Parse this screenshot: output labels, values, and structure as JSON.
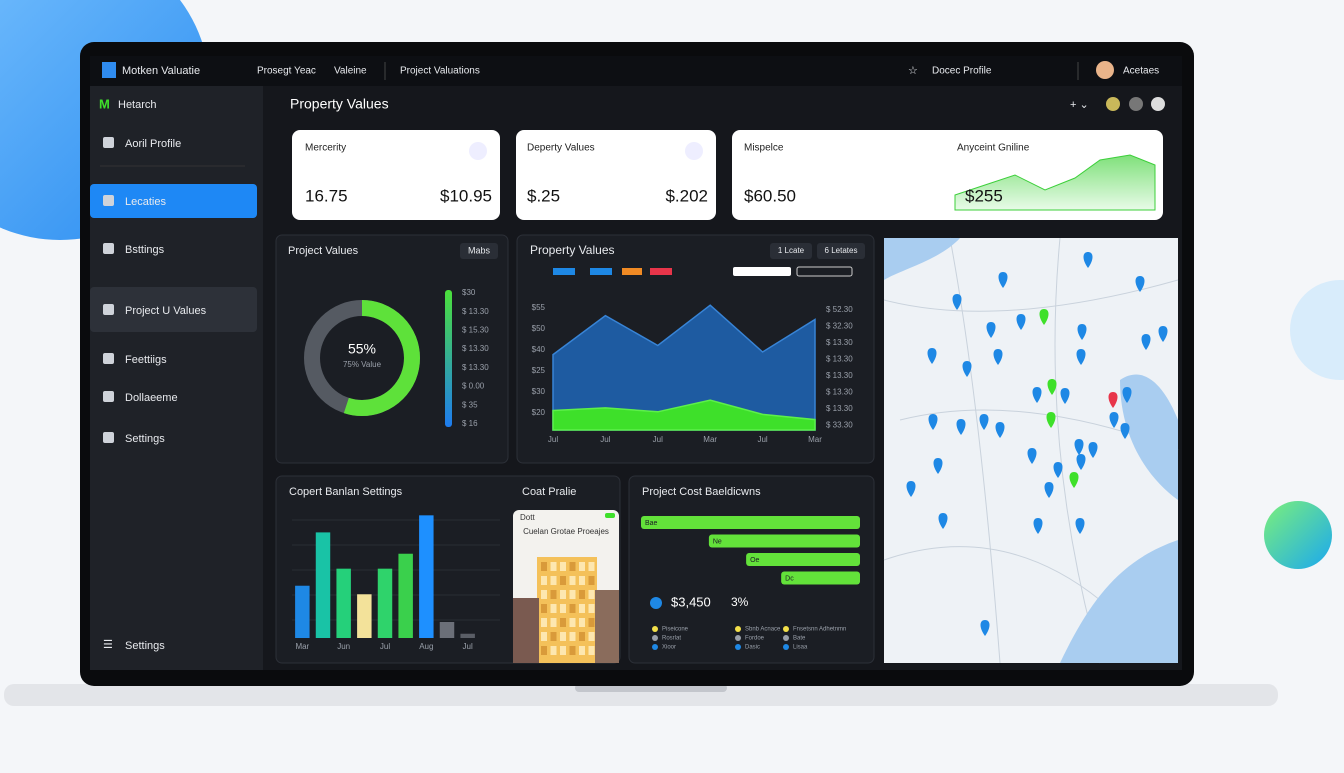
{
  "topbar": {
    "brand": "Motken Valuatie",
    "nav": [
      "Prosegt Yeac",
      "Valeine",
      "Project Valuations"
    ],
    "profile": "Docec Profile",
    "user": "Acetaes"
  },
  "sidebar": {
    "logo": "Hetarch",
    "items": [
      "Aoril Profile",
      "Lecaties",
      "Bsttings",
      "Project U Values",
      "Feettiigs",
      "Dollaeeme",
      "Settings"
    ],
    "footer": "Settings"
  },
  "header": {
    "title": "Property Values"
  },
  "kpis": [
    {
      "label": "Mercerity",
      "values": [
        "16.75",
        "$10.95"
      ]
    },
    {
      "label": "Deperty Values",
      "values": [
        "$.25",
        "$.202"
      ]
    },
    {
      "label": "Mispelce",
      "values": [
        "$60.50"
      ]
    },
    {
      "label": "Anyceint Gniline",
      "values": [
        "$255"
      ]
    }
  ],
  "donut": {
    "title": "Project Values",
    "button": "Mabs",
    "value": 55,
    "value_label": "55%",
    "caption": "75% Value",
    "color": "#5ee13a",
    "scale_labels": [
      "$30",
      "$ 13.30",
      "$ 15.30",
      "$ 13.30",
      "$ 13.30",
      "$ 0.00",
      "$ 35",
      "$ 16"
    ]
  },
  "area_chart": {
    "type": "area",
    "title": "Property Values",
    "buttons": [
      "1 Lcate",
      "6 Letates"
    ],
    "categories": [
      "Jul",
      "Jul",
      "Jul",
      "Mar",
      "Jul",
      "Mar"
    ],
    "ylim": [
      0,
      100
    ],
    "series": [
      {
        "color": "#1f5fa8",
        "values": [
          58,
          88,
          65,
          96,
          60,
          85
        ]
      },
      {
        "color": "#3ee02a",
        "values": [
          15,
          17,
          14,
          23,
          12,
          8
        ]
      }
    ],
    "left_labels": [
      "$55",
      "$50",
      "$40",
      "$25",
      "$30",
      "$20"
    ],
    "right_labels": [
      "$ 52.30",
      "$ 32.30",
      "$ 13.30",
      "$ 13.30",
      "$ 13.30",
      "$ 13.30",
      "$ 13.30",
      "$ 33.30"
    ]
  },
  "bar_chart": {
    "type": "bar",
    "title": "Copert Banlan Settings",
    "categories": [
      "Mar",
      null,
      "Jun",
      null,
      "Jul",
      null,
      "Aug",
      null,
      "Jul"
    ],
    "ylim": [
      0,
      120
    ],
    "values": [
      49,
      99,
      65,
      41,
      65,
      79,
      115,
      15,
      4
    ],
    "colors": [
      "#1e88e5",
      "#19c3a6",
      "#25d07a",
      "#f3e29a",
      "#2fd36b",
      "#3ad04c",
      "#1e90ff",
      "#6b6f78",
      "#5a5e66"
    ]
  },
  "building_card": {
    "title": "Coat Pralie",
    "tag": "Dott",
    "caption": "Cuelan Grotae Proeajes"
  },
  "cost_chart": {
    "title": "Project Cost Baeldicwns",
    "xlim": [
      0,
      100
    ],
    "color": "#63e23a",
    "bars": [
      {
        "label": "Bae",
        "start": 0,
        "end": 100
      },
      {
        "label": "Ne",
        "start": 31,
        "end": 100
      },
      {
        "label": "Oe",
        "start": 48,
        "end": 100
      },
      {
        "label": "Dc",
        "start": 64,
        "end": 100
      }
    ],
    "total": "$3,450",
    "percent": "3%",
    "legend": [
      "Piseicone",
      "Sbnb Acnace",
      "Fnsetsnn Adhetnmn",
      "Rosrlat",
      "Fordoe",
      "Bate",
      "Xioor",
      "Dasic",
      "Lisaa"
    ]
  }
}
